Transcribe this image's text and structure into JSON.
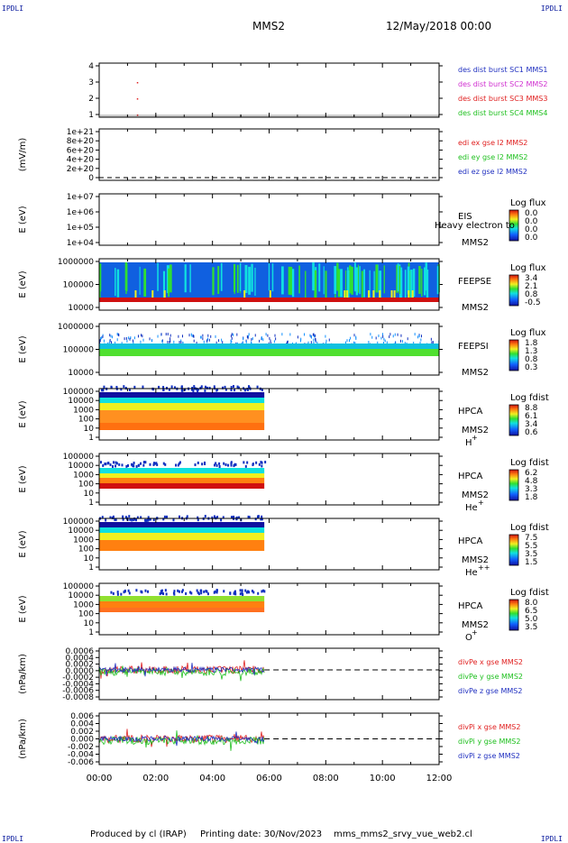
{
  "corner_label": "IPDLI",
  "header": {
    "spacecraft": "MMS2",
    "date": "12/May/2018 00:00"
  },
  "footer": {
    "produced_by": "Produced by cl (IRAP)",
    "printing_date": "Printing date: 30/Nov/2023",
    "filename": "mms_mms2_srvy_vue_web2.cl"
  },
  "xaxis": {
    "ticks": [
      "00:00",
      "02:00",
      "04:00",
      "06:00",
      "08:00",
      "10:00",
      "12:00"
    ]
  },
  "colors": {
    "red": "#e02020",
    "green": "#20c020",
    "blue": "#2030c0",
    "magenta": "#d030d0"
  },
  "panels": [
    {
      "id": "burst",
      "ylabel": "",
      "yticks": [
        "4",
        "3",
        "2",
        "1"
      ],
      "legend": [
        {
          "text": "des dist burst SC1 MMS1",
          "color": "#2030c0"
        },
        {
          "text": "des dist burst SC2 MMS2",
          "color": "#d030d0"
        },
        {
          "text": "des dist burst SC3 MMS3",
          "color": "#e02020"
        },
        {
          "text": "des dist burst SC4 MMS4",
          "color": "#20c020"
        }
      ]
    },
    {
      "id": "edi",
      "ylabel": "(mV/m)",
      "yticks": [
        "1e+21",
        "8e+20",
        "6e+20",
        "4e+20",
        "2e+20",
        "0"
      ],
      "legend": [
        {
          "text": "edi ex gse l2 MMS2",
          "color": "#e02020"
        },
        {
          "text": "edi ey gse l2 MMS2",
          "color": "#20c020"
        },
        {
          "text": "edi ez gse l2 MMS2",
          "color": "#2030c0"
        }
      ]
    },
    {
      "id": "eis",
      "ylabel": "E (eV)",
      "yticks": [
        "1e+07",
        "1e+06",
        "1e+05",
        "1e+04"
      ],
      "instrument": "EIS",
      "sc": "MMS2",
      "extra": "Heavy electron to",
      "species": "",
      "cbar_title": "Log flux",
      "cbar_ticks": [
        "0.0",
        "0.0",
        "0.0",
        "0.0"
      ]
    },
    {
      "id": "feepse",
      "ylabel": "E (eV)",
      "yticks": [
        "1000000",
        "100000",
        "10000"
      ],
      "instrument": "FEEPSE",
      "sc": "MMS2",
      "species": "",
      "cbar_title": "Log flux",
      "cbar_ticks": [
        "3.4",
        "2.1",
        "0.8",
        "-0.5"
      ]
    },
    {
      "id": "feepsi",
      "ylabel": "E (eV)",
      "yticks": [
        "1000000",
        "100000",
        "10000"
      ],
      "instrument": "FEEPSI",
      "sc": "MMS2",
      "species": "",
      "cbar_title": "Log flux",
      "cbar_ticks": [
        "1.8",
        "1.3",
        "0.8",
        "0.3"
      ]
    },
    {
      "id": "hpca_h",
      "ylabel": "E (eV)",
      "yticks": [
        "100000",
        "10000",
        "1000",
        "100",
        "10",
        "1"
      ],
      "instrument": "HPCA",
      "sc": "MMS2",
      "species": "H",
      "species_sup": "+",
      "cbar_title": "Log fdist",
      "cbar_ticks": [
        "8.8",
        "6.1",
        "3.4",
        "0.6"
      ]
    },
    {
      "id": "hpca_he",
      "ylabel": "E (eV)",
      "yticks": [
        "100000",
        "10000",
        "1000",
        "100",
        "10",
        "1"
      ],
      "instrument": "HPCA",
      "sc": "MMS2",
      "species": "He",
      "species_sup": "+",
      "cbar_title": "Log fdist",
      "cbar_ticks": [
        "6.2",
        "4.8",
        "3.3",
        "1.8"
      ]
    },
    {
      "id": "hpca_hepp",
      "ylabel": "E (eV)",
      "yticks": [
        "100000",
        "10000",
        "1000",
        "100",
        "10",
        "1"
      ],
      "instrument": "HPCA",
      "sc": "MMS2",
      "species": "He",
      "species_sup": "++",
      "cbar_title": "Log fdist",
      "cbar_ticks": [
        "7.5",
        "5.5",
        "3.5",
        "1.5"
      ]
    },
    {
      "id": "hpca_o",
      "ylabel": "E (eV)",
      "yticks": [
        "100000",
        "10000",
        "1000",
        "100",
        "10",
        "1"
      ],
      "instrument": "HPCA",
      "sc": "MMS2",
      "species": "O",
      "species_sup": "+",
      "cbar_title": "Log fdist",
      "cbar_ticks": [
        "8.0",
        "6.5",
        "5.0",
        "3.5"
      ]
    },
    {
      "id": "divpe",
      "ylabel": "(nPa/km)",
      "yticks": [
        "0.0006",
        "0.0004",
        "0.0002",
        "0.0000",
        "-0.0002",
        "-0.0004",
        "-0.0006",
        "-0.0008"
      ],
      "legend": [
        {
          "text": "divPe x gse MMS2",
          "color": "#e02020"
        },
        {
          "text": "divPe y gse MMS2",
          "color": "#20c020"
        },
        {
          "text": "divPe z gse MMS2",
          "color": "#2030c0"
        }
      ]
    },
    {
      "id": "divpi",
      "ylabel": "(nPa/km)",
      "yticks": [
        "0.006",
        "0.004",
        "0.002",
        "0.000",
        "-0.002",
        "-0.004",
        "-0.006"
      ],
      "legend": [
        {
          "text": "divPi x gse MMS2",
          "color": "#e02020"
        },
        {
          "text": "divPi y gse MMS2",
          "color": "#20c020"
        },
        {
          "text": "divPi z gse MMS2",
          "color": "#2030c0"
        }
      ]
    }
  ],
  "chart_data": {
    "type": "heatmap",
    "title": "MMS2",
    "xlabel": "",
    "xlim": [
      "00:00",
      "12:00"
    ],
    "data_coverage": {
      "start": "00:00",
      "end": "05:50"
    },
    "burst_points": [
      {
        "time": "01:20",
        "sc": 3
      },
      {
        "time": "01:20",
        "sc": 2
      },
      {
        "time": "01:20",
        "sc": 1
      }
    ],
    "panels": [
      "des dist burst",
      "edi E gse",
      "EIS",
      "FEEPSE",
      "FEEPSI",
      "HPCA H+",
      "HPCA He+",
      "HPCA He++",
      "HPCA O+",
      "divPe gse",
      "divPi gse"
    ]
  }
}
